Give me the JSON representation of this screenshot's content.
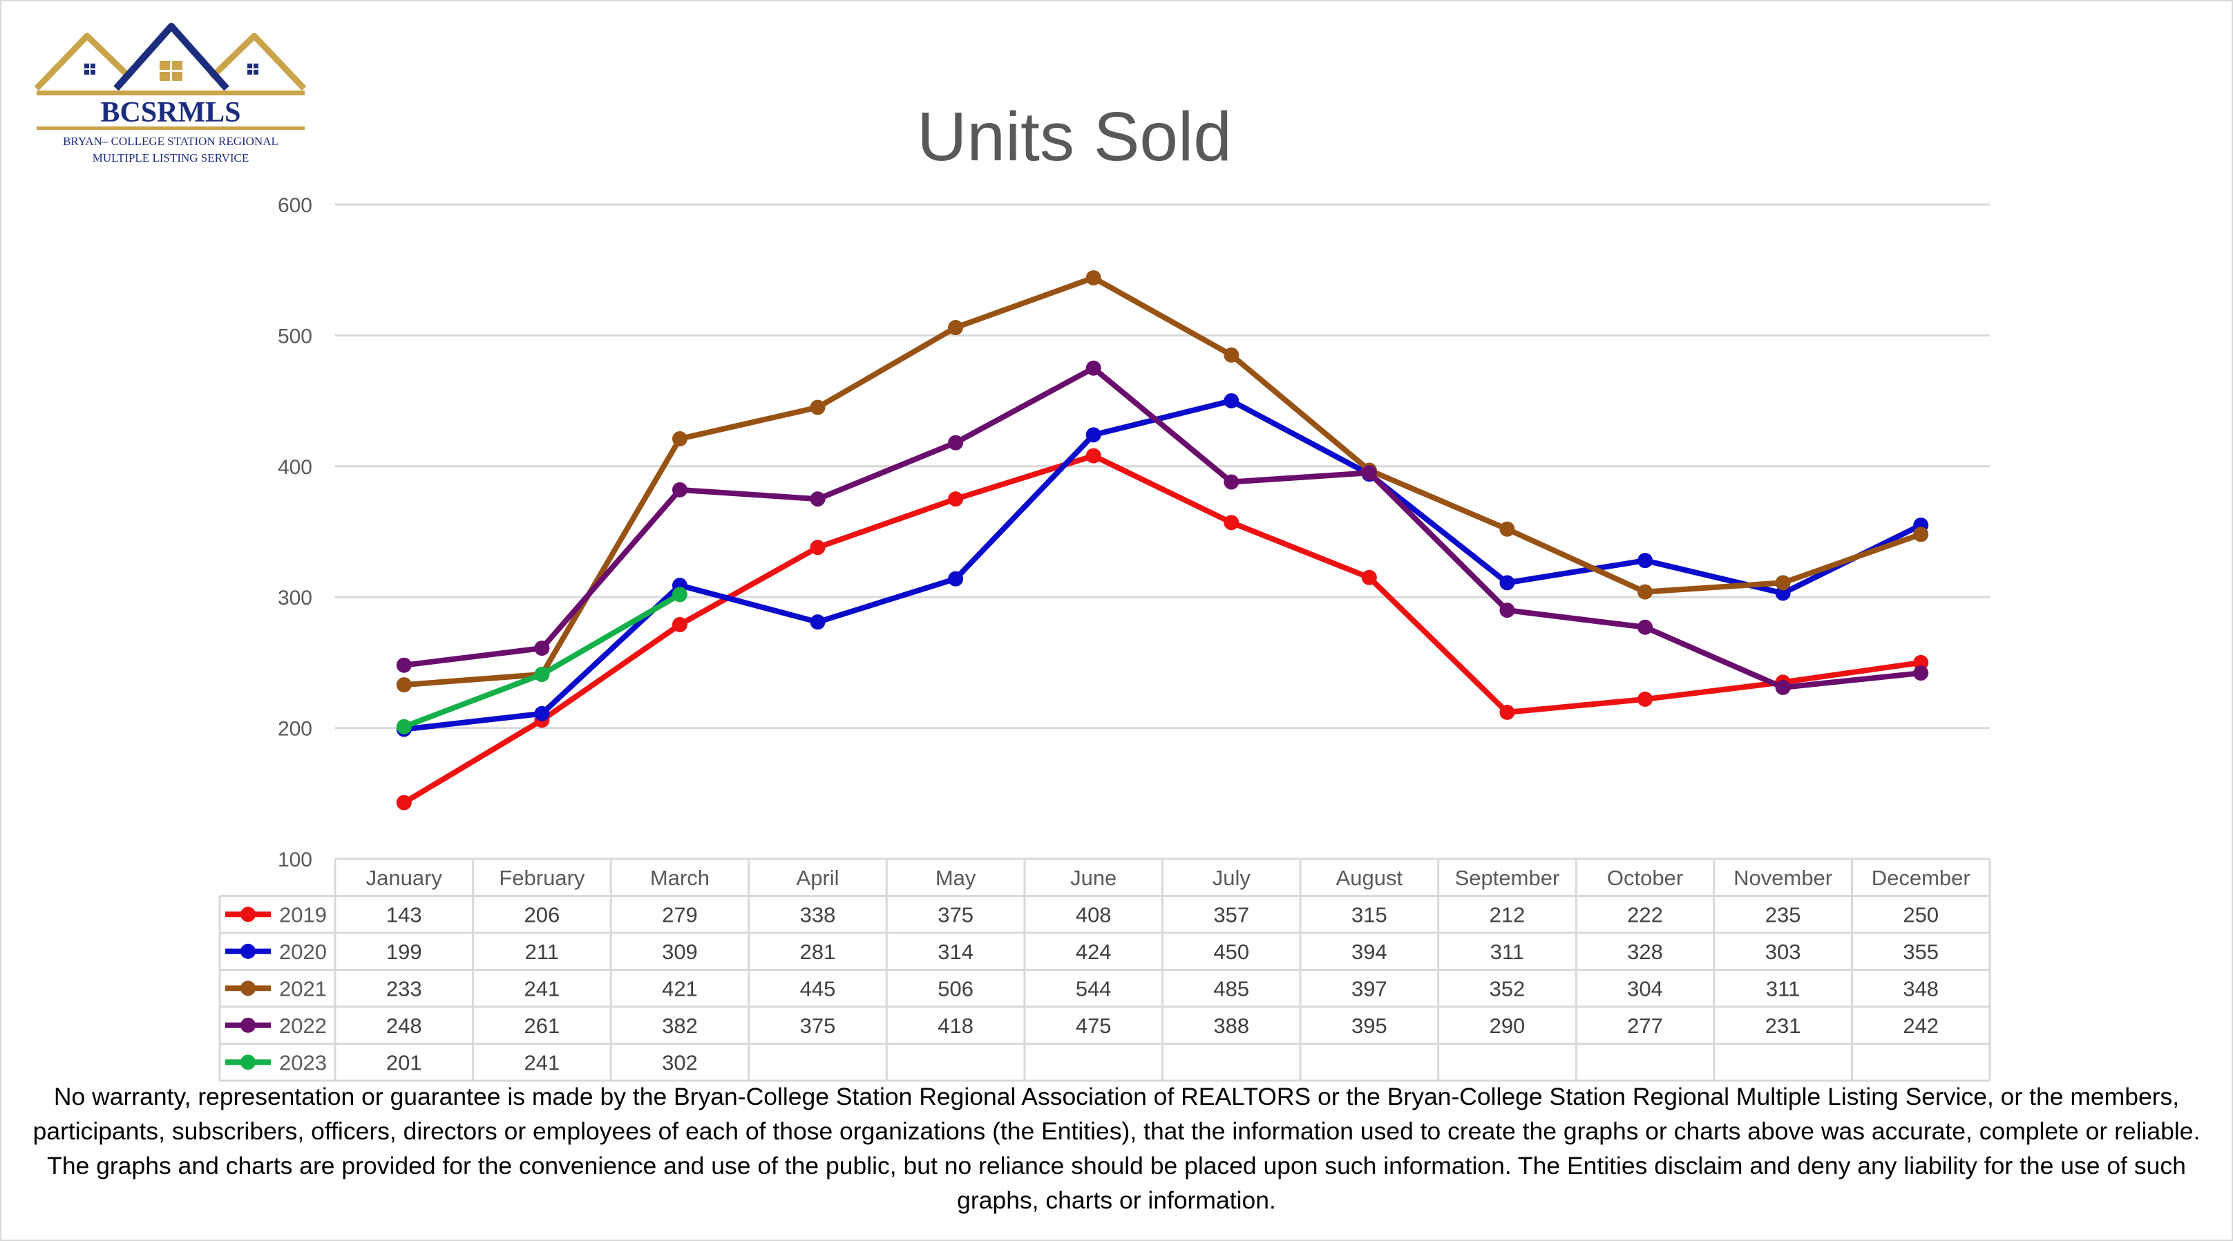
{
  "logo": {
    "name": "BCSRMLS",
    "line1": "BRYAN– COLLEGE STATION REGIONAL",
    "line2": "MULTIPLE LISTING SERVICE"
  },
  "chart_data": {
    "type": "line",
    "title": "Units Sold",
    "xlabel": "",
    "ylabel": "",
    "ylim": [
      100,
      600
    ],
    "yticks": [
      100,
      200,
      300,
      400,
      500,
      600
    ],
    "grid": true,
    "legend": "data-table",
    "categories": [
      "January",
      "February",
      "March",
      "April",
      "May",
      "June",
      "July",
      "August",
      "September",
      "October",
      "November",
      "December"
    ],
    "series": [
      {
        "name": "2019",
        "color": "#ee1111",
        "values": [
          143,
          206,
          279,
          338,
          375,
          408,
          357,
          315,
          212,
          222,
          235,
          250
        ]
      },
      {
        "name": "2020",
        "color": "#0b0bcc",
        "values": [
          199,
          211,
          309,
          281,
          314,
          424,
          450,
          394,
          311,
          328,
          303,
          355
        ]
      },
      {
        "name": "2021",
        "color": "#985214",
        "values": [
          233,
          241,
          421,
          445,
          506,
          544,
          485,
          397,
          352,
          304,
          311,
          348
        ]
      },
      {
        "name": "2022",
        "color": "#6a0e6e",
        "values": [
          248,
          261,
          382,
          375,
          418,
          475,
          388,
          395,
          290,
          277,
          231,
          242
        ]
      },
      {
        "name": "2023",
        "color": "#14b04a",
        "values": [
          201,
          241,
          302,
          null,
          null,
          null,
          null,
          null,
          null,
          null,
          null,
          null
        ]
      }
    ]
  },
  "disclaimer": "No warranty, representation or guarantee is made by the Bryan-College Station Regional Association of REALTORS or the Bryan-College Station Regional Multiple Listing Service, or the members, participants, subscribers, officers, directors or employees of each of those organizations (the Entities), that the information used to create the graphs or charts above was accurate, complete or reliable.  The graphs and charts are provided for the convenience and use of the public, but no reliance should be placed upon such information.  The Entities disclaim and deny any liability for the use of such graphs, charts or information."
}
